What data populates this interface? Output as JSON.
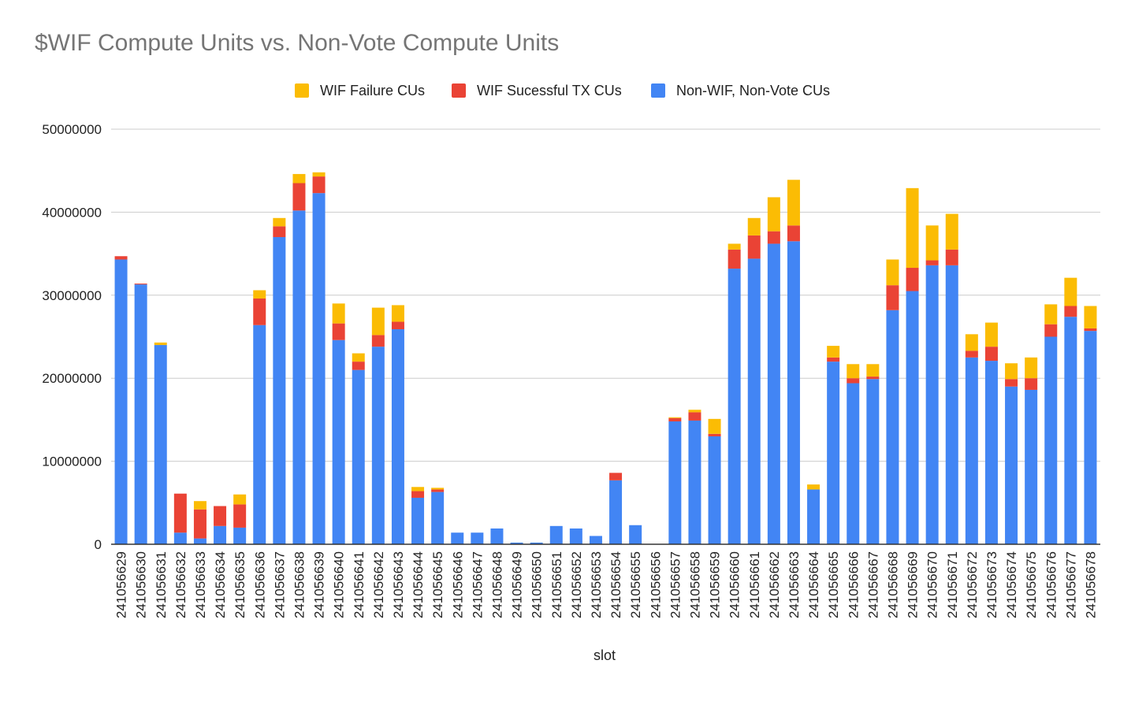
{
  "chart_data": {
    "type": "bar",
    "stacked": true,
    "title": "$WIF Compute Units vs. Non-Vote Compute Units",
    "xlabel": "slot",
    "ylabel": "",
    "ylim": [
      0,
      50000000
    ],
    "yticks": [
      0,
      10000000,
      20000000,
      30000000,
      40000000,
      50000000
    ],
    "ytick_labels": [
      "0",
      "10000000",
      "20000000",
      "30000000",
      "40000000",
      "50000000"
    ],
    "grid": true,
    "legend_position": "top-center",
    "categories": [
      "241056629",
      "241056630",
      "241056631",
      "241056632",
      "241056633",
      "241056634",
      "241056635",
      "241056636",
      "241056637",
      "241056638",
      "241056639",
      "241056640",
      "241056641",
      "241056642",
      "241056643",
      "241056644",
      "241056645",
      "241056646",
      "241056647",
      "241056648",
      "241056649",
      "241056650",
      "241056651",
      "241056652",
      "241056653",
      "241056654",
      "241056655",
      "241056656",
      "241056657",
      "241056658",
      "241056659",
      "241056660",
      "241056661",
      "241056662",
      "241056663",
      "241056664",
      "241056665",
      "241056666",
      "241056667",
      "241056668",
      "241056669",
      "241056670",
      "241056671",
      "241056672",
      "241056673",
      "241056674",
      "241056675",
      "241056676",
      "241056677",
      "241056678"
    ],
    "series": [
      {
        "name": "Non-WIF, Non-Vote CUs",
        "color": "#4285F4",
        "values": [
          34300000,
          31300000,
          24000000,
          1400000,
          700000,
          2200000,
          2000000,
          26400000,
          37000000,
          40200000,
          42300000,
          24600000,
          21000000,
          23800000,
          25900000,
          5600000,
          6300000,
          1400000,
          1400000,
          1900000,
          200000,
          200000,
          2200000,
          1900000,
          1000000,
          7700000,
          2300000,
          0,
          14800000,
          14900000,
          13000000,
          33200000,
          34400000,
          36200000,
          36500000,
          6600000,
          22000000,
          19400000,
          19900000,
          28200000,
          30500000,
          33600000,
          33600000,
          22500000,
          22100000,
          19000000,
          18600000,
          25000000,
          27400000,
          25700000
        ]
      },
      {
        "name": "WIF Sucessful TX CUs",
        "color": "#EA4335",
        "values": [
          400000,
          100000,
          0,
          4700000,
          3500000,
          2400000,
          2800000,
          3200000,
          1300000,
          3300000,
          2000000,
          2000000,
          1000000,
          1400000,
          900000,
          800000,
          300000,
          0,
          0,
          0,
          0,
          0,
          0,
          0,
          0,
          900000,
          0,
          0,
          400000,
          1000000,
          300000,
          2300000,
          2800000,
          1500000,
          1900000,
          0,
          500000,
          600000,
          300000,
          3000000,
          2800000,
          600000,
          1900000,
          800000,
          1700000,
          900000,
          1400000,
          1500000,
          1300000,
          300000
        ]
      },
      {
        "name": "WIF Failure CUs",
        "color": "#FBBC04",
        "values": [
          0,
          0,
          300000,
          0,
          1000000,
          0,
          1200000,
          1000000,
          1000000,
          1100000,
          500000,
          2400000,
          1000000,
          3300000,
          2000000,
          500000,
          200000,
          0,
          0,
          0,
          0,
          0,
          0,
          0,
          0,
          0,
          0,
          0,
          100000,
          300000,
          1800000,
          700000,
          2100000,
          4100000,
          5500000,
          600000,
          1400000,
          1700000,
          1500000,
          3100000,
          9600000,
          4200000,
          4300000,
          2000000,
          2900000,
          1900000,
          2500000,
          2400000,
          3400000,
          2700000
        ]
      }
    ]
  }
}
